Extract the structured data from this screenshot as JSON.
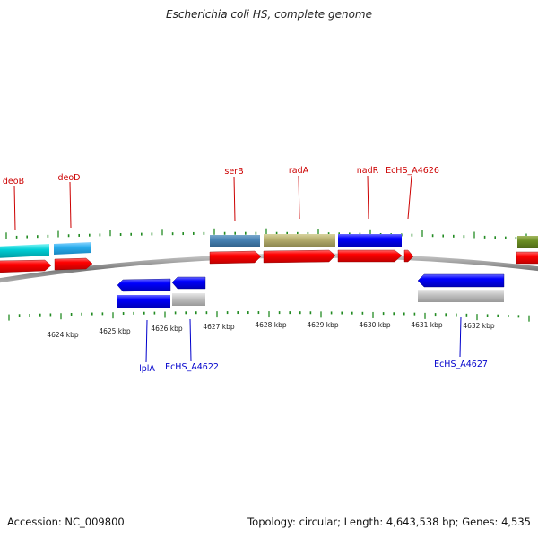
{
  "title": "Escherichia coli HS, complete genome",
  "footer": {
    "accession": "Accession: NC_009800",
    "topology": "Topology: circular; Length: 4,643,538 bp; Genes: 4,535"
  },
  "scale": {
    "labels": [
      "4624 kbp",
      "4625 kbp",
      "4626 kbp",
      "4627 kbp",
      "4628 kbp",
      "4629 kbp",
      "4630 kbp",
      "4631 kbp",
      "4632 kbp"
    ]
  },
  "colors": {
    "top_label": "#cc0000",
    "bottom_label": "#0000cc",
    "forward_cds": "#ff0000",
    "reverse_cds": "#0000ff",
    "tick": "#228b22",
    "backbone": "#808080"
  },
  "genes": {
    "top": [
      "deoB",
      "deoD",
      "serB",
      "radA",
      "nadR",
      "EcHS_A4626"
    ],
    "bottom": [
      "lplA",
      "EcHS_A4622",
      "EcHS_A4627"
    ]
  }
}
